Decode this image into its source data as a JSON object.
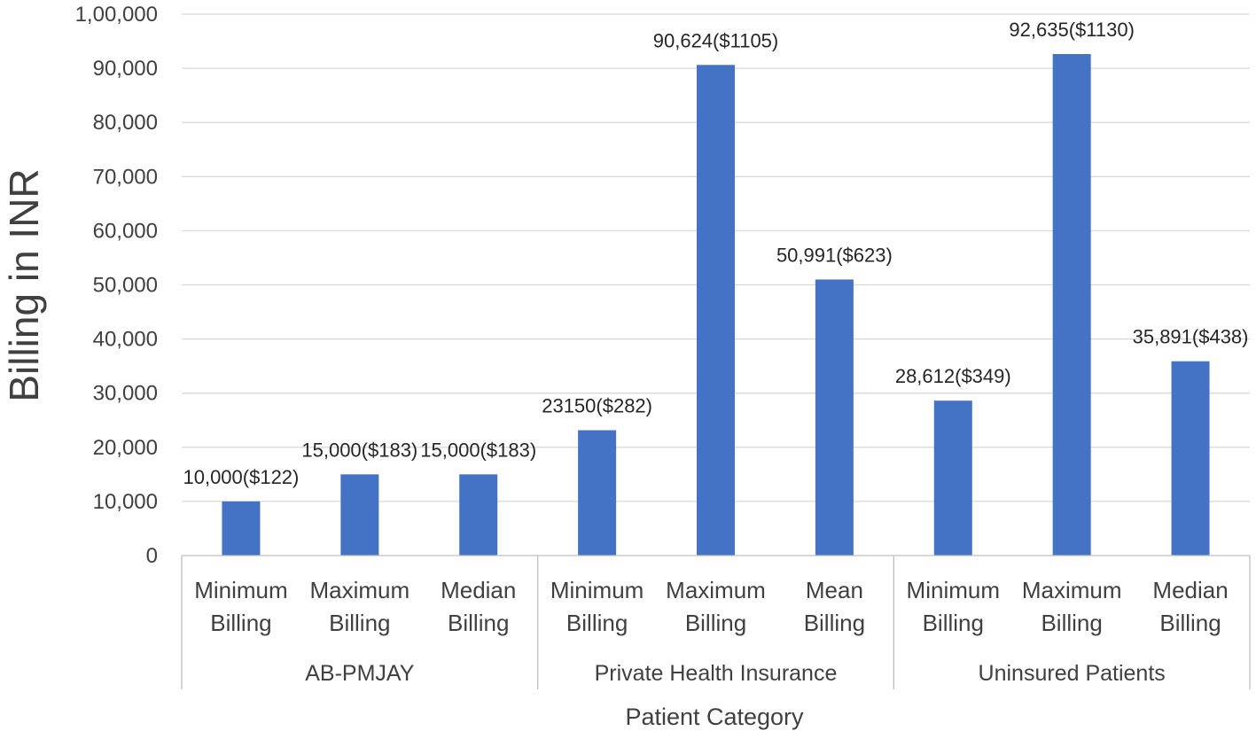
{
  "chart_data": {
    "type": "bar",
    "title": "",
    "xlabel": "Patient Category",
    "ylabel": "Billing in INR",
    "ylim": [
      0,
      100000
    ],
    "yticks": [
      0,
      10000,
      20000,
      30000,
      40000,
      50000,
      60000,
      70000,
      80000,
      90000,
      100000
    ],
    "ytick_labels": [
      "0",
      "10,000",
      "20,000",
      "30,000",
      "40,000",
      "50,000",
      "60,000",
      "70,000",
      "80,000",
      "90,000",
      "1,00,000"
    ],
    "grid": true,
    "legend": "none",
    "bar_color": "#4472C4",
    "groups": [
      {
        "name": "AB-PMJAY",
        "categories": [
          {
            "line1": "Minimum",
            "line2": "Billing"
          },
          {
            "line1": "Maximum",
            "line2": "Billing"
          },
          {
            "line1": "Median",
            "line2": "Billing"
          }
        ]
      },
      {
        "name": "Private Health Insurance",
        "categories": [
          {
            "line1": "Minimum",
            "line2": "Billing"
          },
          {
            "line1": "Maximum",
            "line2": "Billing"
          },
          {
            "line1": "Mean",
            "line2": "Billing"
          }
        ]
      },
      {
        "name": "Uninsured Patients",
        "categories": [
          {
            "line1": "Minimum",
            "line2": "Billing"
          },
          {
            "line1": "Maximum",
            "line2": "Billing"
          },
          {
            "line1": "Median",
            "line2": "Billing"
          }
        ]
      }
    ],
    "values": [
      10000,
      15000,
      15000,
      23150,
      90624,
      50991,
      28612,
      92635,
      35891
    ],
    "data_labels": [
      "10,000($122)",
      "15,000($183)",
      "15,000($183)",
      "23150($282)",
      "90,624($1105)",
      "50,991($623)",
      "28,612($349)",
      "92,635($1130)",
      "35,891($438)"
    ]
  }
}
